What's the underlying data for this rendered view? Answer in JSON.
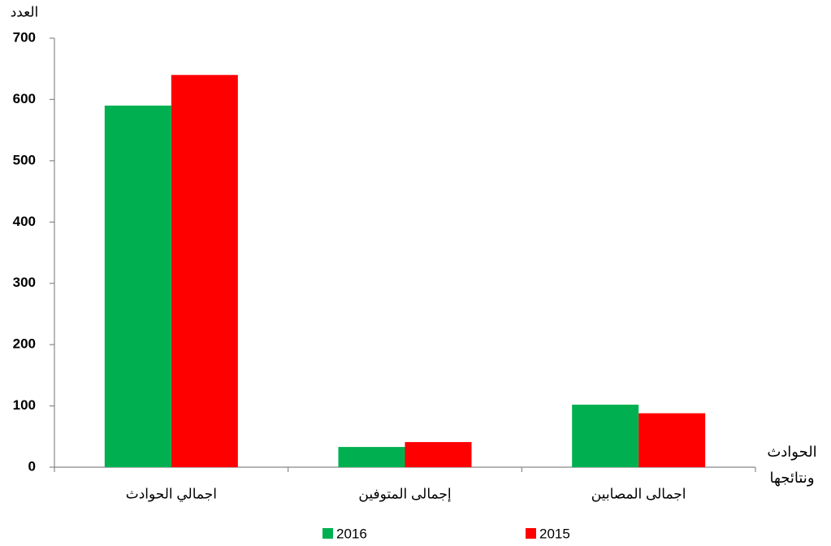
{
  "chart_data": {
    "type": "bar",
    "y_label": "العدد",
    "x_label": "الحوادث ونتائجها",
    "categories": [
      "اجمالي الحوادث",
      "إجمالى المتوفين",
      "اجمالى المصابين"
    ],
    "series": [
      {
        "name": "2016",
        "color": "#00b050",
        "values": [
          590,
          33,
          102
        ]
      },
      {
        "name": "2015",
        "color": "#ff0000",
        "values": [
          640,
          41,
          88
        ]
      }
    ],
    "ylim": [
      0,
      700
    ],
    "yticks": [
      0,
      100,
      200,
      300,
      400,
      500,
      600,
      700
    ],
    "legend": "bottom"
  }
}
